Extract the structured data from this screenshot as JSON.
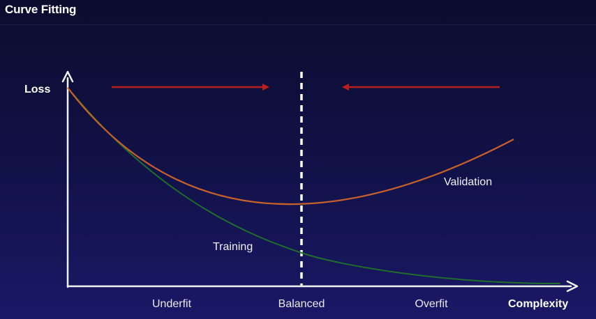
{
  "slide": {
    "title": "Curve Fitting"
  },
  "diagram": {
    "y_axis_label": "Loss",
    "x_axis_label": "Complexity",
    "regions": [
      "Underfit",
      "Balanced",
      "Overfit"
    ],
    "curves": {
      "training": "Training",
      "validation": "Validation"
    },
    "colors": {
      "training": "#1e6e2a",
      "validation": "#c8602a",
      "arrow": "#b8201e",
      "axis": "#f2f2f2",
      "balance_line": "#ffffff"
    }
  }
}
